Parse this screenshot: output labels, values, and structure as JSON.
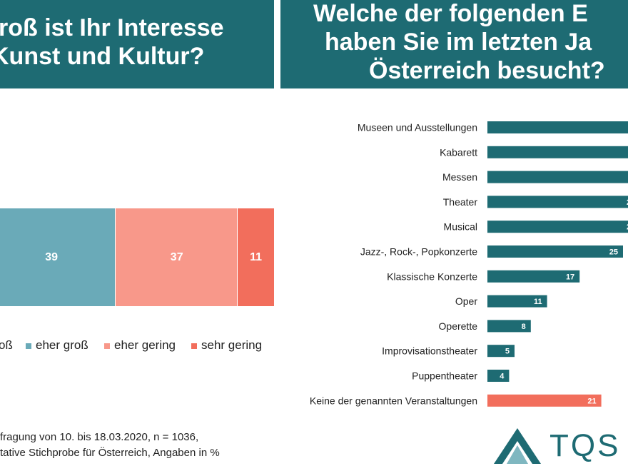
{
  "left_panel": {
    "title_lines": [
      "roß ist Ihr Interesse",
      "Kunst und Kultur?"
    ]
  },
  "right_panel": {
    "title_lines": [
      "Welche der folgenden E",
      "haben Sie im letzten Ja",
      "Österreich besucht?"
    ]
  },
  "legend": [
    {
      "label": "oß",
      "color": "#1e6b73"
    },
    {
      "label": "eher groß",
      "color": "#6aaab8"
    },
    {
      "label": "eher gering",
      "color": "#f8988a"
    },
    {
      "label": "sehr gering",
      "color": "#f26e5c"
    }
  ],
  "footnote": {
    "line1": "fragung von 10. bis 18.03.2020, n = 1036,",
    "line2": "tative Stichprobe für Österreich, Angaben in %"
  },
  "logo": {
    "text": "TQS"
  },
  "chart_data": [
    {
      "type": "bar",
      "orientation": "horizontal-stacked",
      "categories": [
        ""
      ],
      "series": [
        {
          "name": "eher groß",
          "values": [
            39
          ],
          "color": "#6aaab8"
        },
        {
          "name": "eher gering",
          "values": [
            37
          ],
          "color": "#f8988a"
        },
        {
          "name": "sehr gering",
          "values": [
            11
          ],
          "color": "#f26e5c"
        }
      ]
    },
    {
      "type": "bar",
      "orientation": "horizontal",
      "categories": [
        "Museen und Ausstellungen",
        "Kabarett",
        "Messen",
        "Theater",
        "Musical",
        "Jazz-, Rock-, Popkonzerte",
        "Klassische Konzerte",
        "Oper",
        "Operette",
        "Improvisationstheater",
        "Puppentheater",
        "Keine der genannten Veranstaltungen"
      ],
      "values": [
        null,
        null,
        null,
        null,
        null,
        25,
        17,
        11,
        8,
        5,
        4,
        21
      ],
      "visible_labels": [
        "",
        "",
        "",
        "2",
        "2",
        "25",
        "17",
        "11",
        "8",
        "5",
        "4",
        "21"
      ],
      "colors": {
        "default": "#1e6b73",
        "highlight": "#f26e5c"
      },
      "highlight_category": "Keine der genannten Veranstaltungen"
    }
  ]
}
